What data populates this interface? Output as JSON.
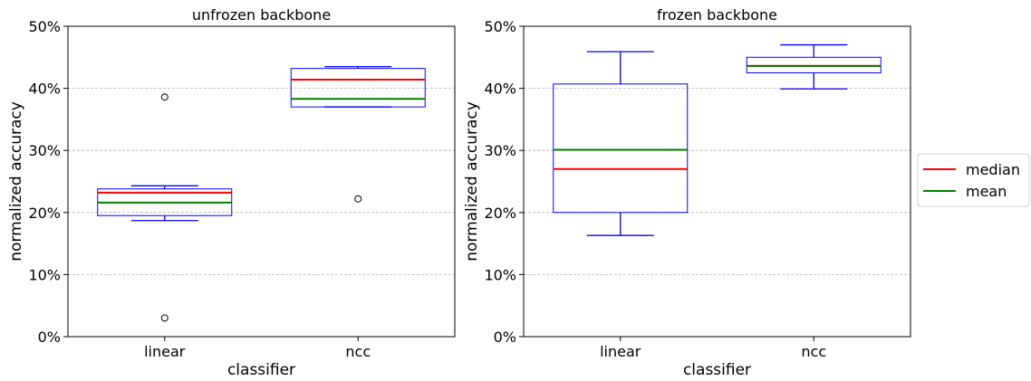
{
  "chart_data": [
    {
      "type": "box",
      "title": "unfrozen backbone",
      "xlabel": "classifier",
      "ylabel": "normalized accuracy",
      "categories": [
        "linear",
        "ncc"
      ],
      "ylim": [
        0,
        50
      ],
      "yticks": [
        "0%",
        "10%",
        "20%",
        "30%",
        "40%",
        "50%"
      ],
      "grid": "y-dashed",
      "boxes": [
        {
          "category": "linear",
          "whisker_low": 18.7,
          "q1": 19.5,
          "median": 23.2,
          "mean": 21.6,
          "q3": 23.8,
          "whisker_high": 24.3,
          "outliers": [
            38.6,
            3.0
          ]
        },
        {
          "category": "ncc",
          "whisker_low": 37.0,
          "q1": 37.0,
          "median": 41.4,
          "mean": 38.3,
          "q3": 43.2,
          "whisker_high": 43.5,
          "outliers": [
            22.2
          ]
        }
      ]
    },
    {
      "type": "box",
      "title": "frozen backbone",
      "xlabel": "classifier",
      "ylabel": "normalized accuracy",
      "categories": [
        "linear",
        "ncc"
      ],
      "ylim": [
        0,
        50
      ],
      "yticks": [
        "0%",
        "10%",
        "20%",
        "30%",
        "40%",
        "50%"
      ],
      "grid": "y-dashed",
      "boxes": [
        {
          "category": "linear",
          "whisker_low": 16.3,
          "q1": 20.0,
          "median": 27.0,
          "mean": 30.1,
          "q3": 40.7,
          "whisker_high": 45.9,
          "outliers": []
        },
        {
          "category": "ncc",
          "whisker_low": 39.9,
          "q1": 42.5,
          "median": 43.6,
          "mean": 43.6,
          "q3": 45.0,
          "whisker_high": 47.0,
          "outliers": []
        }
      ]
    }
  ],
  "legend": {
    "placement": "right",
    "items": [
      {
        "label": "median",
        "color": "#ff0000"
      },
      {
        "label": "mean",
        "color": "#008000"
      }
    ]
  },
  "colors": {
    "box": "#0000ff",
    "median": "#ff0000",
    "mean": "#008000",
    "grid": "#b0b0b0"
  }
}
